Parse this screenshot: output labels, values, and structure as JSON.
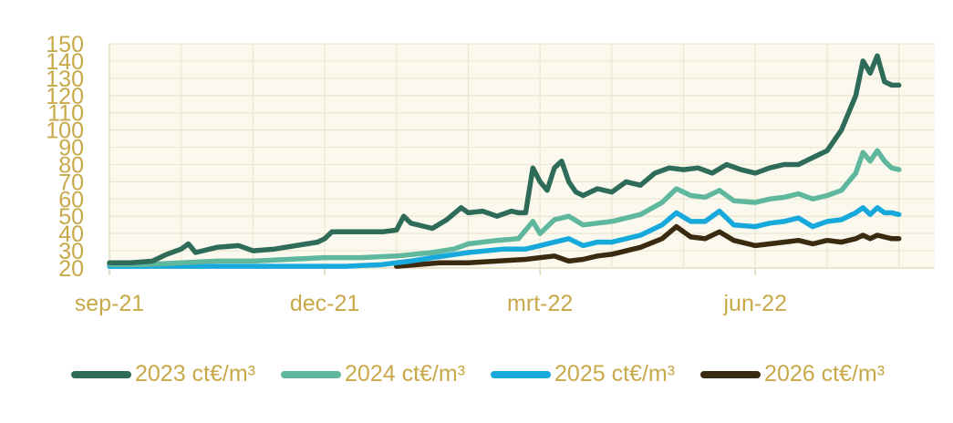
{
  "chart_data": {
    "type": "line",
    "ylim": [
      20,
      150
    ],
    "y_ticks": [
      20,
      30,
      40,
      50,
      60,
      70,
      80,
      90,
      100,
      110,
      120,
      130,
      140,
      150
    ],
    "x_ticks": [
      "sep-21",
      "dec-21",
      "mrt-22",
      "jun-22"
    ],
    "x_tick_positions": [
      0,
      3,
      6,
      9
    ],
    "x_range": [
      0,
      11.5
    ],
    "grid": true,
    "legend_position": "bottom",
    "series": [
      {
        "name": "2023 ct€/m³",
        "color": "#2e6b59",
        "points": [
          [
            0,
            23
          ],
          [
            0.3,
            23
          ],
          [
            0.6,
            24
          ],
          [
            0.8,
            28
          ],
          [
            1.0,
            31
          ],
          [
            1.1,
            34
          ],
          [
            1.2,
            29
          ],
          [
            1.5,
            32
          ],
          [
            1.8,
            33
          ],
          [
            2.0,
            30
          ],
          [
            2.3,
            31
          ],
          [
            2.6,
            33
          ],
          [
            2.9,
            35
          ],
          [
            3.0,
            37
          ],
          [
            3.1,
            41
          ],
          [
            3.3,
            41
          ],
          [
            3.6,
            41
          ],
          [
            3.8,
            41
          ],
          [
            4.0,
            42
          ],
          [
            4.1,
            50
          ],
          [
            4.2,
            46
          ],
          [
            4.5,
            43
          ],
          [
            4.7,
            48
          ],
          [
            4.9,
            55
          ],
          [
            5.0,
            52
          ],
          [
            5.2,
            53
          ],
          [
            5.4,
            50
          ],
          [
            5.6,
            53
          ],
          [
            5.7,
            52
          ],
          [
            5.8,
            52
          ],
          [
            5.9,
            78
          ],
          [
            6.0,
            70
          ],
          [
            6.1,
            65
          ],
          [
            6.2,
            78
          ],
          [
            6.3,
            82
          ],
          [
            6.4,
            70
          ],
          [
            6.5,
            64
          ],
          [
            6.6,
            62
          ],
          [
            6.8,
            66
          ],
          [
            7.0,
            64
          ],
          [
            7.2,
            70
          ],
          [
            7.4,
            68
          ],
          [
            7.6,
            75
          ],
          [
            7.8,
            78
          ],
          [
            8.0,
            77
          ],
          [
            8.2,
            78
          ],
          [
            8.4,
            75
          ],
          [
            8.6,
            80
          ],
          [
            8.8,
            77
          ],
          [
            9.0,
            75
          ],
          [
            9.2,
            78
          ],
          [
            9.4,
            80
          ],
          [
            9.6,
            80
          ],
          [
            9.8,
            84
          ],
          [
            10.0,
            88
          ],
          [
            10.2,
            100
          ],
          [
            10.4,
            120
          ],
          [
            10.5,
            140
          ],
          [
            10.6,
            133
          ],
          [
            10.7,
            143
          ],
          [
            10.8,
            128
          ],
          [
            10.9,
            126
          ],
          [
            11.0,
            126
          ]
        ]
      },
      {
        "name": "2024 ct€/m³",
        "color": "#5fb79e",
        "points": [
          [
            0,
            22
          ],
          [
            0.5,
            22
          ],
          [
            1.0,
            23
          ],
          [
            1.5,
            24
          ],
          [
            2.0,
            24
          ],
          [
            2.5,
            25
          ],
          [
            3.0,
            26
          ],
          [
            3.5,
            26
          ],
          [
            4.0,
            27
          ],
          [
            4.5,
            29
          ],
          [
            4.8,
            31
          ],
          [
            5.0,
            34
          ],
          [
            5.4,
            36
          ],
          [
            5.7,
            37
          ],
          [
            5.9,
            47
          ],
          [
            6.0,
            40
          ],
          [
            6.2,
            48
          ],
          [
            6.4,
            50
          ],
          [
            6.6,
            45
          ],
          [
            6.8,
            46
          ],
          [
            7.0,
            47
          ],
          [
            7.4,
            51
          ],
          [
            7.7,
            58
          ],
          [
            7.9,
            66
          ],
          [
            8.1,
            62
          ],
          [
            8.3,
            61
          ],
          [
            8.5,
            65
          ],
          [
            8.7,
            59
          ],
          [
            9.0,
            58
          ],
          [
            9.2,
            60
          ],
          [
            9.4,
            61
          ],
          [
            9.6,
            63
          ],
          [
            9.8,
            60
          ],
          [
            10.0,
            62
          ],
          [
            10.2,
            65
          ],
          [
            10.4,
            75
          ],
          [
            10.5,
            87
          ],
          [
            10.6,
            82
          ],
          [
            10.7,
            88
          ],
          [
            10.8,
            82
          ],
          [
            10.9,
            78
          ],
          [
            11.0,
            77
          ]
        ]
      },
      {
        "name": "2025 ct€/m³",
        "color": "#17a9dc",
        "points": [
          [
            0,
            21
          ],
          [
            1.0,
            21
          ],
          [
            2.0,
            21
          ],
          [
            3.0,
            21
          ],
          [
            3.3,
            21
          ],
          [
            3.8,
            22
          ],
          [
            4.2,
            24
          ],
          [
            4.5,
            26
          ],
          [
            5.0,
            29
          ],
          [
            5.5,
            31
          ],
          [
            5.8,
            31
          ],
          [
            6.0,
            33
          ],
          [
            6.2,
            35
          ],
          [
            6.4,
            37
          ],
          [
            6.6,
            33
          ],
          [
            6.8,
            35
          ],
          [
            7.0,
            35
          ],
          [
            7.4,
            39
          ],
          [
            7.7,
            45
          ],
          [
            7.9,
            52
          ],
          [
            8.1,
            47
          ],
          [
            8.3,
            47
          ],
          [
            8.5,
            53
          ],
          [
            8.7,
            45
          ],
          [
            9.0,
            44
          ],
          [
            9.2,
            46
          ],
          [
            9.4,
            47
          ],
          [
            9.6,
            49
          ],
          [
            9.8,
            44
          ],
          [
            10.0,
            47
          ],
          [
            10.2,
            48
          ],
          [
            10.4,
            52
          ],
          [
            10.5,
            55
          ],
          [
            10.6,
            51
          ],
          [
            10.7,
            55
          ],
          [
            10.8,
            52
          ],
          [
            10.9,
            52
          ],
          [
            11.0,
            51
          ]
        ]
      },
      {
        "name": "2026 ct€/m³",
        "color": "#3a2a10",
        "points": [
          [
            4.0,
            21
          ],
          [
            4.3,
            22
          ],
          [
            4.6,
            23
          ],
          [
            5.0,
            23
          ],
          [
            5.4,
            24
          ],
          [
            5.8,
            25
          ],
          [
            6.0,
            26
          ],
          [
            6.2,
            27
          ],
          [
            6.4,
            24
          ],
          [
            6.6,
            25
          ],
          [
            6.8,
            27
          ],
          [
            7.0,
            28
          ],
          [
            7.4,
            32
          ],
          [
            7.7,
            37
          ],
          [
            7.9,
            44
          ],
          [
            8.1,
            38
          ],
          [
            8.3,
            37
          ],
          [
            8.5,
            41
          ],
          [
            8.7,
            36
          ],
          [
            9.0,
            33
          ],
          [
            9.2,
            34
          ],
          [
            9.4,
            35
          ],
          [
            9.6,
            36
          ],
          [
            9.8,
            34
          ],
          [
            10.0,
            36
          ],
          [
            10.2,
            35
          ],
          [
            10.4,
            37
          ],
          [
            10.5,
            39
          ],
          [
            10.6,
            37
          ],
          [
            10.7,
            39
          ],
          [
            10.8,
            38
          ],
          [
            10.9,
            37
          ],
          [
            11.0,
            37
          ]
        ]
      }
    ]
  }
}
